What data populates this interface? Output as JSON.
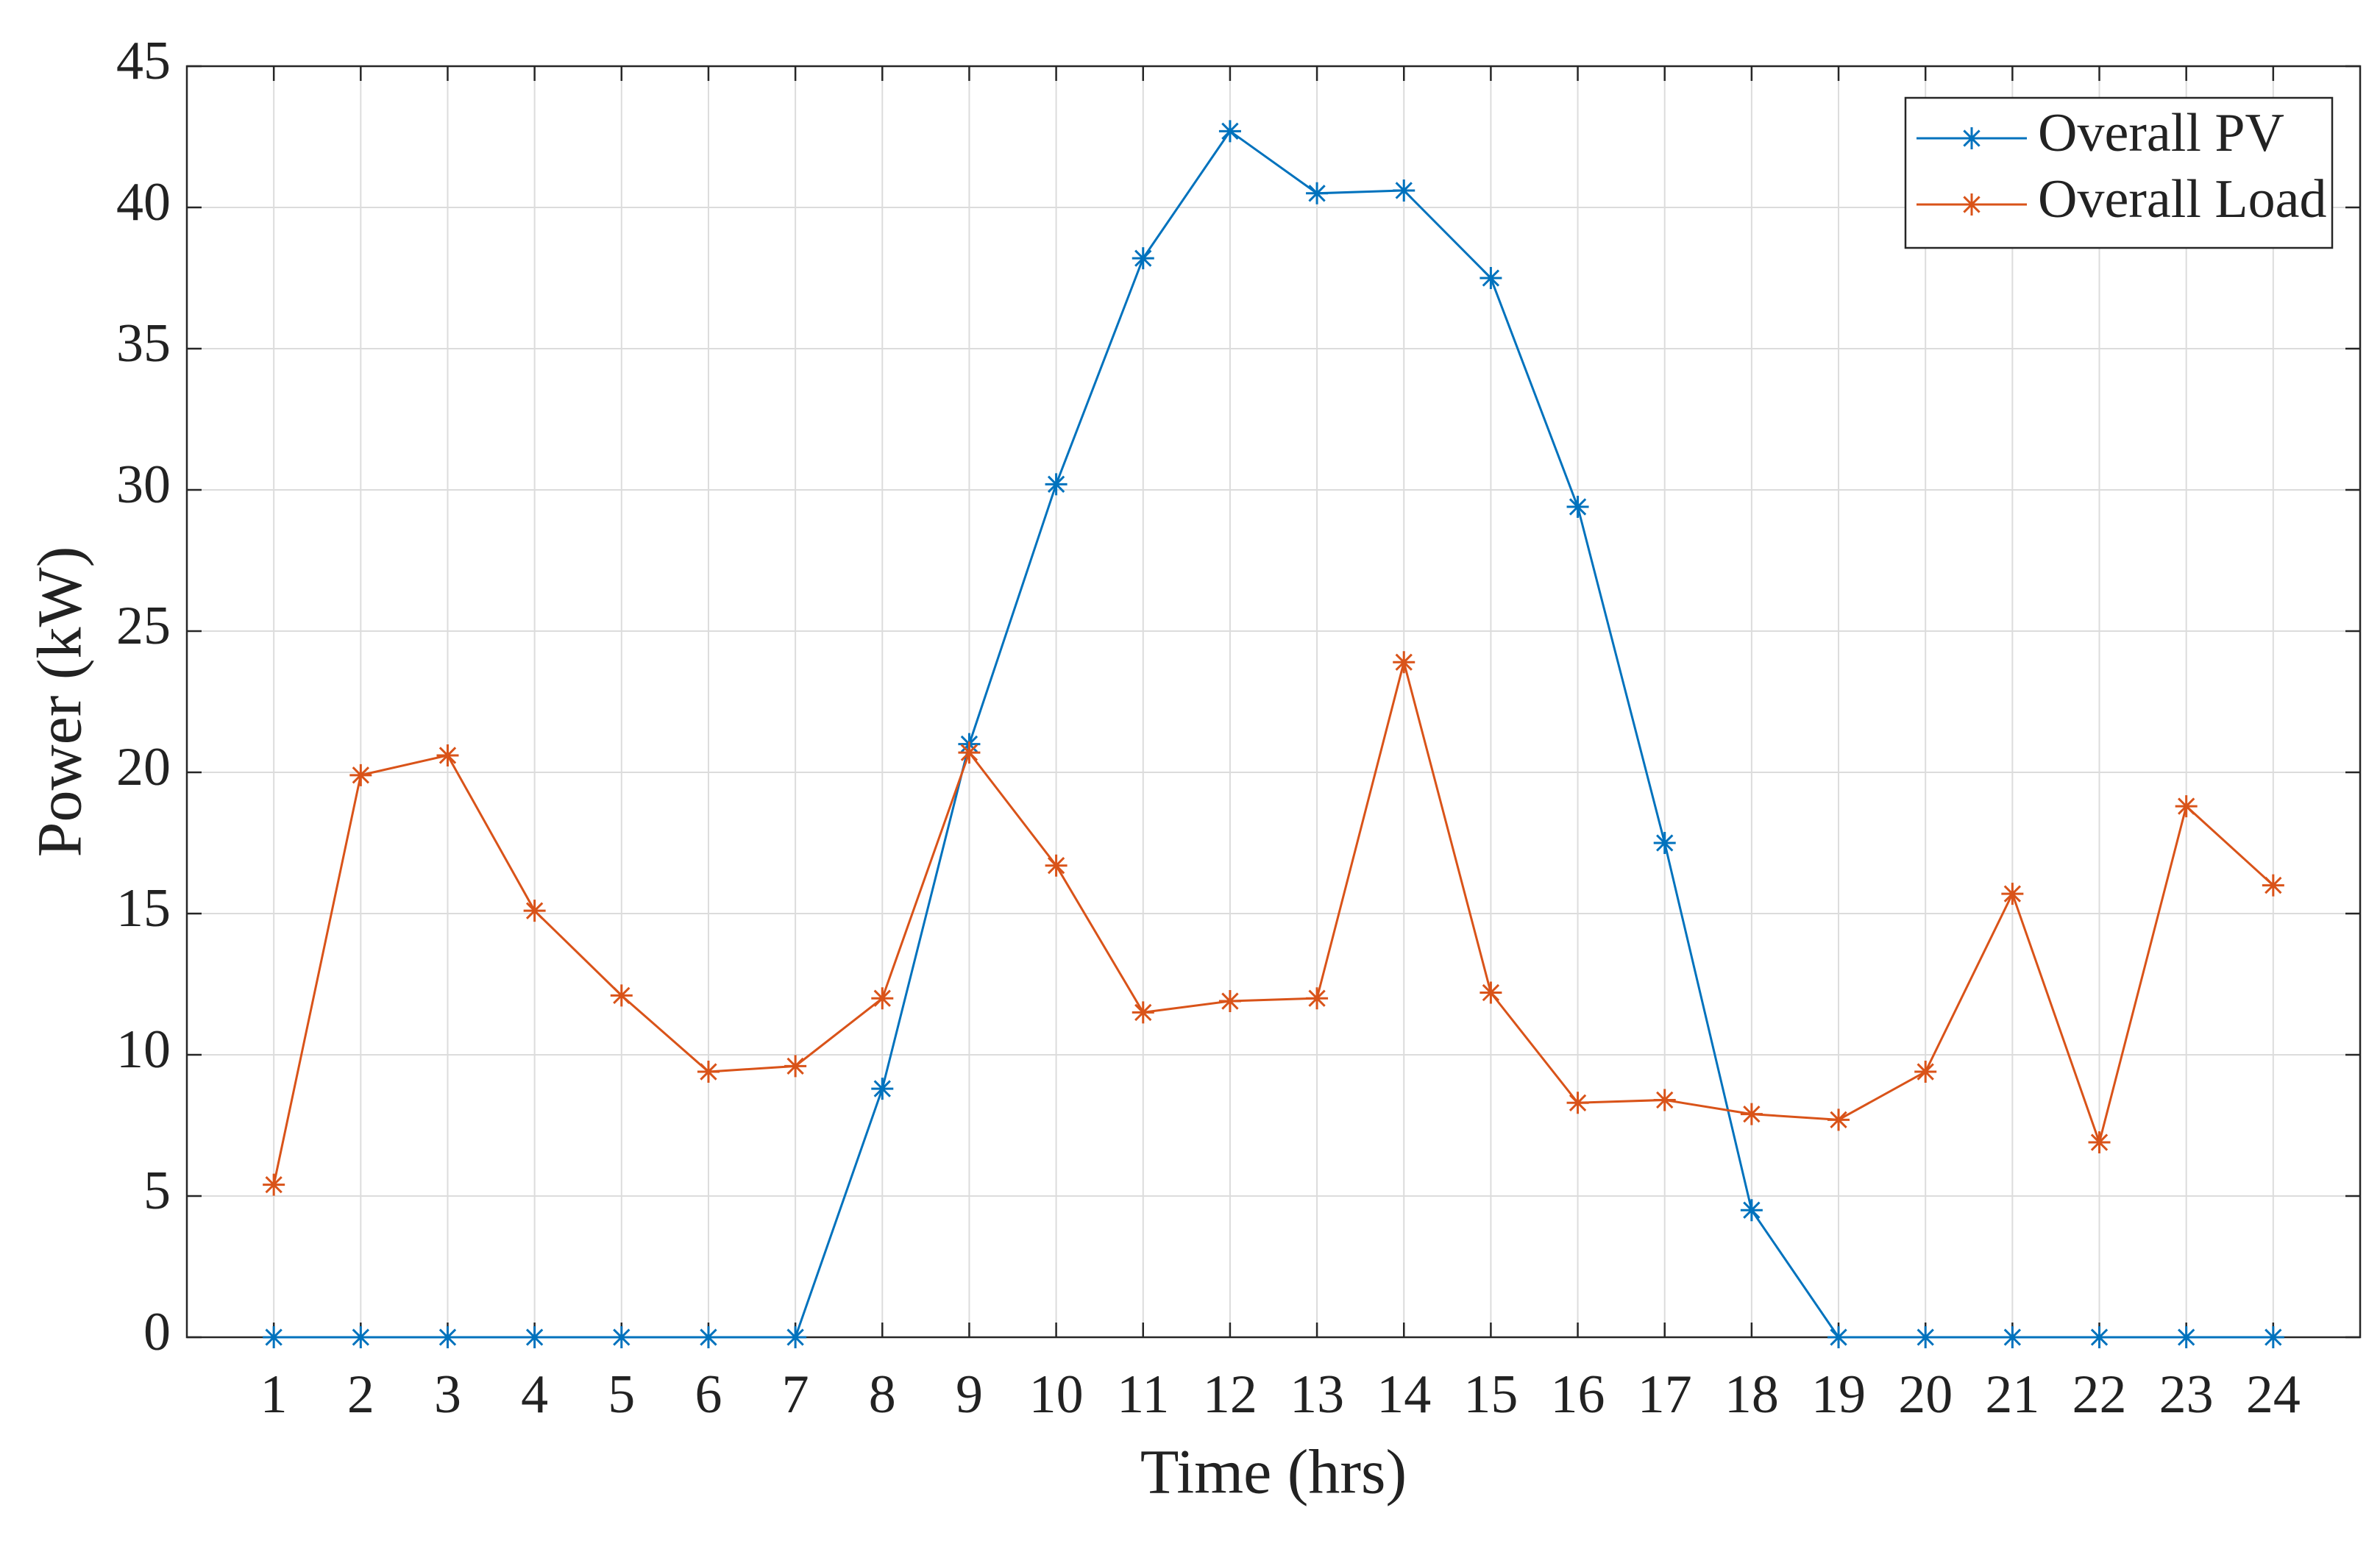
{
  "chart_data": {
    "type": "line",
    "x_label": "Time (hrs)",
    "y_label": "Power (kW)",
    "x": [
      1,
      2,
      3,
      4,
      5,
      6,
      7,
      8,
      9,
      10,
      11,
      12,
      13,
      14,
      15,
      16,
      17,
      18,
      19,
      20,
      21,
      22,
      23,
      24
    ],
    "series": [
      {
        "name": "Overall PV",
        "color": "#0072BD",
        "values": [
          0,
          0,
          0,
          0,
          0,
          0,
          0,
          8.8,
          21,
          30.2,
          38.2,
          42.7,
          40.5,
          40.6,
          37.5,
          29.4,
          17.5,
          4.5,
          0,
          0,
          0,
          0,
          0,
          0
        ]
      },
      {
        "name": "Overall Load",
        "color": "#D95319",
        "values": [
          5.4,
          19.9,
          20.6,
          15.1,
          12.1,
          9.4,
          9.6,
          12,
          20.7,
          16.7,
          11.5,
          11.9,
          12,
          23.9,
          12.2,
          8.3,
          8.4,
          7.9,
          7.7,
          9.4,
          15.7,
          6.9,
          18.8,
          16
        ]
      }
    ],
    "xlim": [
      0,
      25
    ],
    "xticks": [
      1,
      2,
      3,
      4,
      5,
      6,
      7,
      8,
      9,
      10,
      11,
      12,
      13,
      14,
      15,
      16,
      17,
      18,
      19,
      20,
      21,
      22,
      23,
      24
    ],
    "ylim": [
      0,
      45
    ],
    "yticks": [
      0,
      5,
      10,
      15,
      20,
      25,
      30,
      35,
      40,
      45
    ],
    "grid": true,
    "legend": "upper right",
    "marker": "asterisk"
  }
}
